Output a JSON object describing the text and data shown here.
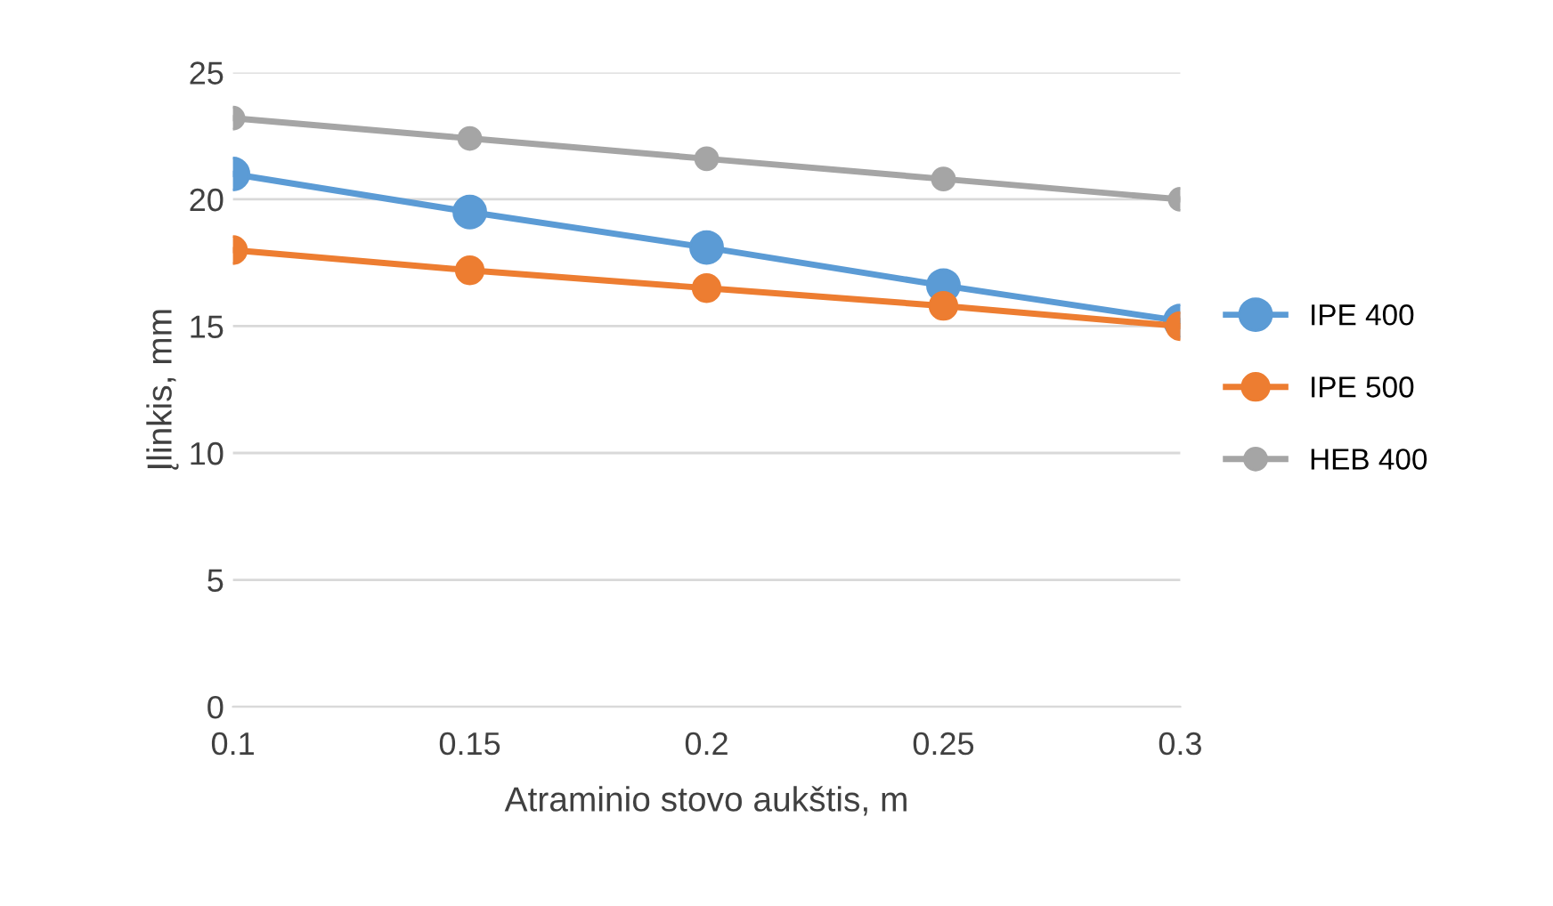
{
  "chart_data": {
    "type": "line",
    "xlabel": "Atraminio stovo aukštis, m",
    "ylabel": "Įlinkis, mm",
    "categories": [
      "0.1",
      "0.15",
      "0.2",
      "0.25",
      "0.3"
    ],
    "series": [
      {
        "name": "IPE 400",
        "color": "#5b9bd5",
        "values": [
          21.0,
          19.5,
          18.1,
          16.6,
          15.2
        ]
      },
      {
        "name": "IPE 500",
        "color": "#ed7d31",
        "values": [
          18.0,
          17.2,
          16.5,
          15.8,
          15.0
        ]
      },
      {
        "name": "HEB 400",
        "color": "#a5a5a5",
        "values": [
          23.2,
          22.4,
          21.6,
          20.8,
          20.0
        ]
      }
    ],
    "ylim": [
      0,
      25
    ],
    "yticks": [
      0,
      5,
      10,
      15,
      20,
      25
    ],
    "grid": "y",
    "legend": "right",
    "marker": "circle",
    "line_style": "solid"
  }
}
